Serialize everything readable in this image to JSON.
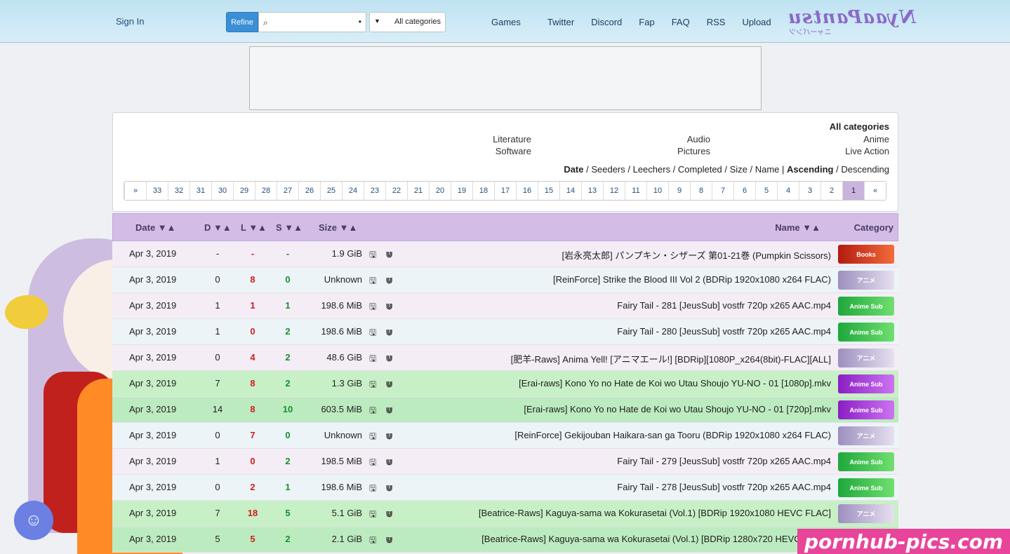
{
  "navbar": {
    "sign_in": "Sign In",
    "refine_label": "Refine",
    "search_value": "",
    "search_dot": "•",
    "category_value": "All categories",
    "links": [
      "Games",
      "Twitter",
      "Discord",
      "Fap",
      "FAQ",
      "RSS",
      "Upload"
    ],
    "logo_text": "NyaaPantsu",
    "logo_sub": "ニャーパンツ"
  },
  "filters": {
    "title": "All categories",
    "categories": [
      [
        "Anime",
        "Audio",
        "Literature"
      ],
      [
        "Live Action",
        "Pictures",
        "Software"
      ]
    ],
    "sort_prefix": "Date",
    "sort_rest": " / Seeders / Leechers / Completed / Size / Name ",
    "sort_order_sep": "| ",
    "sort_asc": "Ascending",
    "sort_desc": " / Descending"
  },
  "pagination": {
    "prev": "«",
    "next": "»",
    "pages": [
      "1",
      "2",
      "3",
      "4",
      "5",
      "6",
      "7",
      "8",
      "9",
      "10",
      "11",
      "12",
      "13",
      "14",
      "15",
      "16",
      "17",
      "18",
      "19",
      "20",
      "21",
      "22",
      "23",
      "24",
      "25",
      "26",
      "27",
      "28",
      "29",
      "30",
      "31",
      "32",
      "33"
    ],
    "active": "1"
  },
  "table": {
    "headers": {
      "category": "Category",
      "name": "Name ▼▲",
      "size": "Size ▼▲",
      "seeders": "S ▼▲",
      "leechers": "L ▼▲",
      "completed": "D ▼▲",
      "date": "Date ▼▲"
    },
    "rows": [
      {
        "cat": "Books",
        "cat_class": "cat-books",
        "name": "[岩永亮太郎] パンプキン・シザーズ 第01-21巻 (Pumpkin Scissors)",
        "size": "1.9 GiB",
        "s": "-",
        "l": "-",
        "d": "-",
        "date": "Apr 3, 2019",
        "style": "default"
      },
      {
        "cat": "アニメ",
        "cat_class": "cat-anime",
        "name": "[ReinForce] Strike the Blood III Vol 2 (BDRip 1920x1080 x264 FLAC)",
        "size": "Unknown",
        "s": "0",
        "l": "8",
        "d": "0",
        "date": "Apr 3, 2019",
        "style": "default alt"
      },
      {
        "cat": "Anime Sub",
        "cat_class": "cat-sub",
        "name": "Fairy Tail - 281 [JeusSub] vostfr 720p x265 AAC.mp4",
        "size": "198.6 MiB",
        "s": "1",
        "l": "1",
        "d": "1",
        "date": "Apr 3, 2019",
        "style": "default"
      },
      {
        "cat": "Anime Sub",
        "cat_class": "cat-sub",
        "name": "Fairy Tail - 280 [JeusSub] vostfr 720p x265 AAC.mp4",
        "size": "198.6 MiB",
        "s": "2",
        "l": "0",
        "d": "1",
        "date": "Apr 3, 2019",
        "style": "default alt"
      },
      {
        "cat": "アニメ",
        "cat_class": "cat-anime",
        "name": "[肥羊-Raws] Anima Yell! [アニマエール!] [BDRip][1080P_x264(8bit)-FLAC][ALL]",
        "size": "48.6 GiB",
        "s": "2",
        "l": "4",
        "d": "0",
        "date": "Apr 3, 2019",
        "style": "default"
      },
      {
        "cat": "Anime Sub",
        "cat_class": "cat-sub purple",
        "name": "[Erai-raws] Kono Yo no Hate de Koi wo Utau Shoujo YU-NO - 01 [1080p].mkv",
        "size": "1.3 GiB",
        "s": "2",
        "l": "8",
        "d": "7",
        "date": "Apr 3, 2019",
        "style": "success"
      },
      {
        "cat": "Anime Sub",
        "cat_class": "cat-sub purple",
        "name": "[Erai-raws] Kono Yo no Hate de Koi wo Utau Shoujo YU-NO - 01 [720p].mkv",
        "size": "603.5 MiB",
        "s": "10",
        "l": "8",
        "d": "14",
        "date": "Apr 3, 2019",
        "style": "success alt"
      },
      {
        "cat": "アニメ",
        "cat_class": "cat-anime",
        "name": "[ReinForce] Gekijouban Haikara-san ga Tooru (BDRip 1920x1080 x264 FLAC)",
        "size": "Unknown",
        "s": "0",
        "l": "7",
        "d": "0",
        "date": "Apr 3, 2019",
        "style": "default alt"
      },
      {
        "cat": "Anime Sub",
        "cat_class": "cat-sub",
        "name": "Fairy Tail - 279 [JeusSub] vostfr 720p x265 AAC.mp4",
        "size": "198.5 MiB",
        "s": "2",
        "l": "0",
        "d": "1",
        "date": "Apr 3, 2019",
        "style": "default"
      },
      {
        "cat": "Anime Sub",
        "cat_class": "cat-sub",
        "name": "Fairy Tail - 278 [JeusSub] vostfr 720p x265 AAC.mp4",
        "size": "198.6 MiB",
        "s": "1",
        "l": "2",
        "d": "0",
        "date": "Apr 3, 2019",
        "style": "default alt"
      },
      {
        "cat": "アニメ",
        "cat_class": "cat-anime",
        "name": "[Beatrice-Raws] Kaguya-sama wa Kokurasetai (Vol.1) [BDRip 1920x1080 HEVC FLAC]",
        "size": "5.1 GiB",
        "s": "5",
        "l": "18",
        "d": "7",
        "date": "Apr 3, 2019",
        "style": "success"
      },
      {
        "cat": "アニメ",
        "cat_class": "cat-anime",
        "name": "[Beatrice-Raws] Kaguya-sama wa Kokurasetai (Vol.1) [BDRip 1280x720 HEVC Vorbis]",
        "size": "2.1 GiB",
        "s": "2",
        "l": "5",
        "d": "5",
        "date": "Apr 3, 2019",
        "style": "success alt"
      }
    ]
  },
  "watermark": "pornhub-pics.com"
}
